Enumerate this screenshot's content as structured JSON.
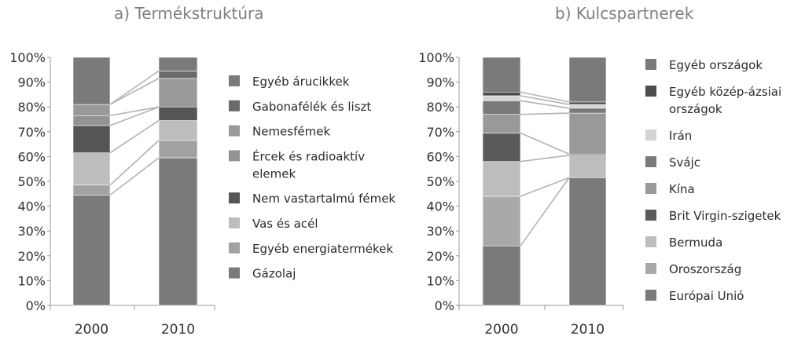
{
  "chart_data": [
    {
      "type": "bar",
      "stacked": true,
      "percent": true,
      "title": "a)  Termékstruktúra",
      "categories": [
        "2000",
        "2010"
      ],
      "ylim": [
        0,
        100
      ],
      "yticks": [
        "0%",
        "10%",
        "20%",
        "30%",
        "40%",
        "50%",
        "60%",
        "70%",
        "80%",
        "90%",
        "100%"
      ],
      "connector_lines": true,
      "legend_position": "right",
      "series": [
        {
          "name": "Gázolaj",
          "values": [
            44.5,
            59.5
          ],
          "color": "#7a7a7a"
        },
        {
          "name": "Egyéb energiatermékek",
          "values": [
            4,
            7
          ],
          "color": "#a2a2a2"
        },
        {
          "name": "Vas és acél",
          "values": [
            13,
            8
          ],
          "color": "#bdbdbd"
        },
        {
          "name": "Nem vastartalmú fémek",
          "values": [
            11,
            5.5
          ],
          "color": "#555555"
        },
        {
          "name": "Ércek és radioaktív elemek",
          "values": [
            4,
            0
          ],
          "color": "#939393"
        },
        {
          "name": "Nemesfémek",
          "values": [
            4.5,
            11.5
          ],
          "color": "#999999"
        },
        {
          "name": "Gabonafélék és liszt",
          "values": [
            0,
            3
          ],
          "color": "#6a6a6a"
        },
        {
          "name": "Egyéb árucikkek",
          "values": [
            19,
            5.5
          ],
          "color": "#7a7a7a"
        }
      ],
      "legend_order": [
        "Egyéb árucikkek",
        "Gabonafélék és liszt",
        "Nemesfémek",
        "Ércek és radioaktív elemek",
        "Nem vastartalmú fémek",
        "Vas és acél",
        "Egyéb energiatermékek",
        "Gázolaj"
      ]
    },
    {
      "type": "bar",
      "stacked": true,
      "percent": true,
      "title": "b)  Kulcspartnerek",
      "categories": [
        "2000",
        "2010"
      ],
      "ylim": [
        0,
        100
      ],
      "yticks": [
        "0%",
        "10%",
        "20%",
        "30%",
        "40%",
        "50%",
        "60%",
        "70%",
        "80%",
        "90%",
        "100%"
      ],
      "connector_lines": true,
      "legend_position": "right",
      "series": [
        {
          "name": "Európai Unió",
          "values": [
            24,
            51.5
          ],
          "color": "#7a7a7a"
        },
        {
          "name": "Oroszország",
          "values": [
            20,
            0
          ],
          "color": "#a9a9a9"
        },
        {
          "name": "Bermuda",
          "values": [
            14,
            9
          ],
          "color": "#bdbdbd"
        },
        {
          "name": "Brit Virgin-szigetek",
          "values": [
            11.5,
            0.5
          ],
          "color": "#5a5a5a"
        },
        {
          "name": "Kína",
          "values": [
            7.5,
            16.5
          ],
          "color": "#999999"
        },
        {
          "name": "Svájc",
          "values": [
            5.5,
            2
          ],
          "color": "#7a7a7a"
        },
        {
          "name": "Irán",
          "values": [
            2,
            1.5
          ],
          "color": "#d4d4d4"
        },
        {
          "name": "Egyéb közép-ázsiai országok",
          "values": [
            1.5,
            1
          ],
          "color": "#4e4e4e"
        },
        {
          "name": "Egyéb országok",
          "values": [
            14,
            18
          ],
          "color": "#7a7a7a"
        }
      ],
      "legend_order": [
        "Egyéb országok",
        "Egyéb közép-ázsiai országok",
        "Irán",
        "Svájc",
        "Kína",
        "Brit Virgin-szigetek",
        "Bermuda",
        "Oroszország",
        "Európai Unió"
      ]
    }
  ]
}
